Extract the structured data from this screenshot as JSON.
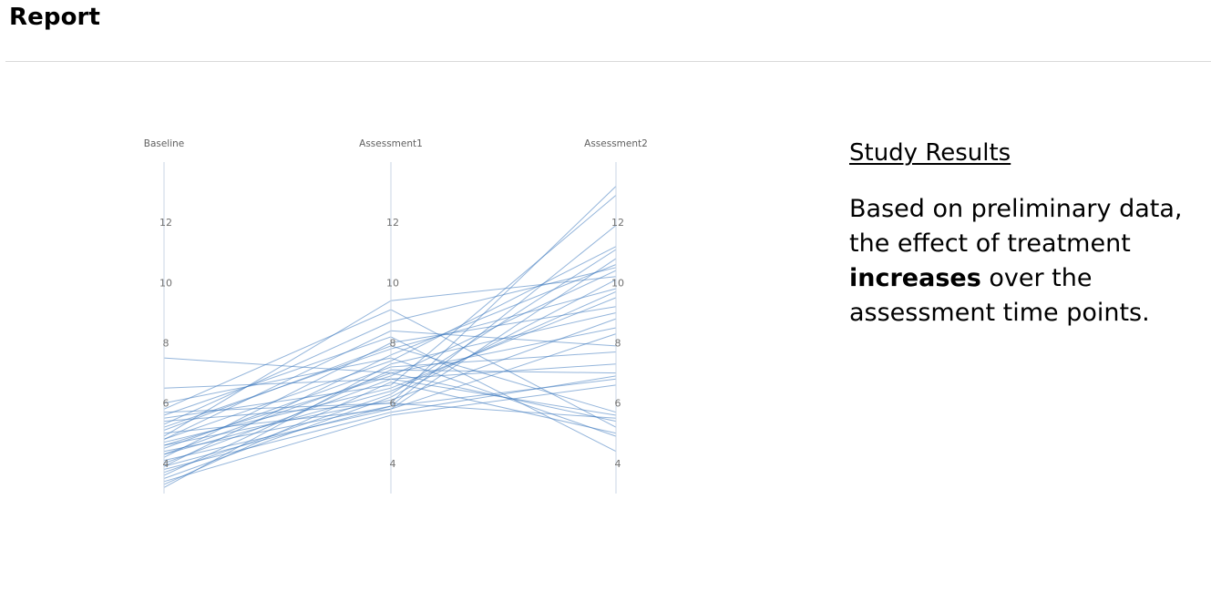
{
  "header": {
    "title": "Report"
  },
  "results": {
    "heading": "Study Results",
    "body_before": "Based on preliminary data, the effect of treatment ",
    "body_bold": "increases",
    "body_after": " over the assessment time points."
  },
  "colors": {
    "line": "#3d78bd",
    "axis": "#c9d6e6",
    "divider": "#d9d9d9"
  },
  "chart_data": {
    "type": "parallel-coordinates",
    "dimensions": [
      "Baseline",
      "Assessment1",
      "Assessment2"
    ],
    "axis_range": [
      3,
      14
    ],
    "ticks": [
      4,
      6,
      8,
      10,
      12
    ],
    "series": [
      {
        "values": [
          7.5,
          7.0,
          5.4
        ]
      },
      {
        "values": [
          6.5,
          6.8,
          5.6
        ]
      },
      {
        "values": [
          5.8,
          9.1,
          5.2
        ]
      },
      {
        "values": [
          5.6,
          8.2,
          4.4
        ]
      },
      {
        "values": [
          5.5,
          6.6,
          12.9
        ]
      },
      {
        "values": [
          5.4,
          6.0,
          13.2
        ]
      },
      {
        "values": [
          5.2,
          7.8,
          9.8
        ]
      },
      {
        "values": [
          5.0,
          5.8,
          10.8
        ]
      },
      {
        "values": [
          4.9,
          9.4,
          10.2
        ]
      },
      {
        "values": [
          4.8,
          8.4,
          7.9
        ]
      },
      {
        "values": [
          4.8,
          7.4,
          11.2
        ]
      },
      {
        "values": [
          4.6,
          6.9,
          10.4
        ]
      },
      {
        "values": [
          4.6,
          6.1,
          8.8
        ]
      },
      {
        "values": [
          4.5,
          7.2,
          7.7
        ]
      },
      {
        "values": [
          4.4,
          5.9,
          11.9
        ]
      },
      {
        "values": [
          4.3,
          6.4,
          9.7
        ]
      },
      {
        "values": [
          4.2,
          8.0,
          9.2
        ]
      },
      {
        "values": [
          4.1,
          5.8,
          8.3
        ]
      },
      {
        "values": [
          4.0,
          6.8,
          7.3
        ]
      },
      {
        "values": [
          3.9,
          7.6,
          10.6
        ]
      },
      {
        "values": [
          3.8,
          5.7,
          6.9
        ]
      },
      {
        "values": [
          3.7,
          6.3,
          11.1
        ]
      },
      {
        "values": [
          3.6,
          7.1,
          7.0
        ]
      },
      {
        "values": [
          3.5,
          6.2,
          10.1
        ]
      },
      {
        "values": [
          3.4,
          5.6,
          6.6
        ]
      },
      {
        "values": [
          3.3,
          6.7,
          5.0
        ]
      },
      {
        "values": [
          3.2,
          7.3,
          9.0
        ]
      },
      {
        "values": [
          5.7,
          6.0,
          5.5
        ]
      },
      {
        "values": [
          6.0,
          7.5,
          4.9
        ]
      },
      {
        "values": [
          5.3,
          8.7,
          10.5
        ]
      },
      {
        "values": [
          4.7,
          6.5,
          9.5
        ]
      },
      {
        "values": [
          3.9,
          5.9,
          6.8
        ]
      },
      {
        "values": [
          5.1,
          7.9,
          5.7
        ]
      },
      {
        "values": [
          4.3,
          7.0,
          8.5
        ]
      }
    ]
  }
}
